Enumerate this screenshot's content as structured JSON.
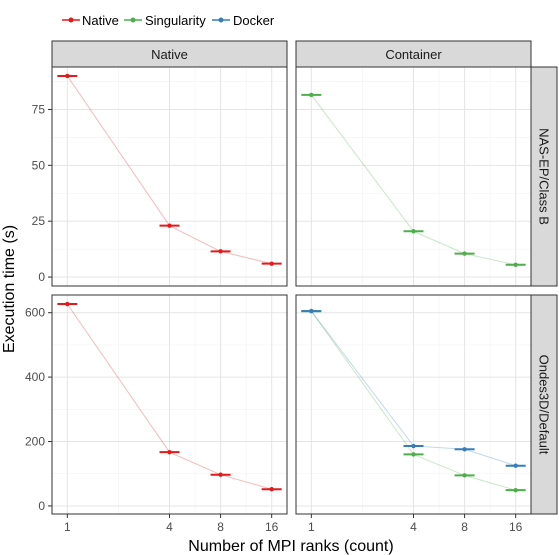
{
  "chart_data": {
    "type": "line",
    "xlabel": "Number of MPI ranks (count)",
    "ylabel": "Execution time (s)",
    "x_ticks": [
      1,
      4,
      8,
      16
    ],
    "x_scale": "log2",
    "legend": {
      "position": "top-left",
      "entries": [
        {
          "name": "Native",
          "color": "#e41a1c"
        },
        {
          "name": "Singularity",
          "color": "#4daf4a"
        },
        {
          "name": "Docker",
          "color": "#377eb8"
        }
      ]
    },
    "columns": [
      "Native",
      "Container"
    ],
    "rows": [
      "NAS-EP/Class B",
      "Ondes3D/Default"
    ],
    "panels": [
      {
        "column": "Native",
        "row": "NAS-EP/Class B",
        "ylim": [
          -4,
          94
        ],
        "yticks": [
          0,
          25,
          50,
          75
        ],
        "series": [
          {
            "name": "Native",
            "x": [
              1,
              4,
              8,
              16
            ],
            "y": [
              90,
              23,
              11.5,
              6
            ]
          }
        ]
      },
      {
        "column": "Container",
        "row": "NAS-EP/Class B",
        "ylim": [
          -4,
          94
        ],
        "yticks": [
          0,
          25,
          50,
          75
        ],
        "series": [
          {
            "name": "Singularity",
            "x": [
              1,
              4,
              8,
              16
            ],
            "y": [
              81.5,
              20.5,
              10.5,
              5.5
            ]
          }
        ]
      },
      {
        "column": "Native",
        "row": "Ondes3D/Default",
        "ylim": [
          -25,
          655
        ],
        "yticks": [
          0,
          200,
          400,
          600
        ],
        "series": [
          {
            "name": "Native",
            "x": [
              1,
              4,
              8,
              16
            ],
            "y": [
              627,
              167,
              97,
              52
            ]
          }
        ]
      },
      {
        "column": "Container",
        "row": "Ondes3D/Default",
        "ylim": [
          -25,
          655
        ],
        "yticks": [
          0,
          200,
          400,
          600
        ],
        "series": [
          {
            "name": "Singularity",
            "x": [
              1,
              4,
              8,
              16
            ],
            "y": [
              605,
              160,
              95,
              49
            ]
          },
          {
            "name": "Docker",
            "x": [
              1,
              4,
              8,
              16
            ],
            "y": [
              605,
              186,
              176,
              125
            ]
          }
        ]
      }
    ]
  }
}
